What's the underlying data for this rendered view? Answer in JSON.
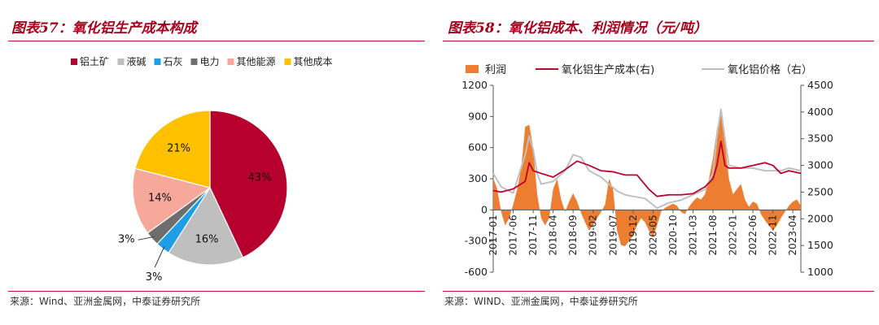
{
  "left": {
    "figure_title": "图表57：氧化铝生产成本构成",
    "source": "来源：Wind、亚洲金属网，中泰证券研究所"
  },
  "right": {
    "figure_title": "图表58：氧化铝成本、利润情况（元/吨）",
    "source": "来源：WIND、亚洲金属网，中泰证券研究所"
  },
  "chart_data": [
    {
      "type": "pie",
      "title": "",
      "legend_position": "top",
      "slices": [
        {
          "label": "铝土矿",
          "value": 43,
          "display": "43%",
          "color": "#b8002e"
        },
        {
          "label": "液碱",
          "value": 16,
          "display": "16%",
          "color": "#bfbfbf"
        },
        {
          "label": "石灰",
          "value": 3,
          "display": "3%",
          "color": "#1e9ee6"
        },
        {
          "label": "电力",
          "value": 3,
          "display": "3%",
          "color": "#6e6e6e"
        },
        {
          "label": "其他能源",
          "value": 14,
          "display": "14%",
          "color": "#f6a89a"
        },
        {
          "label": "其他成本",
          "value": 21,
          "display": "21%",
          "color": "#ffc000"
        }
      ]
    },
    {
      "type": "area",
      "title": "",
      "legend_position": "top",
      "x_tick_labels": [
        "2017-01",
        "2017-06",
        "2017-11",
        "2018-04",
        "2018-09",
        "2019-02",
        "2019-07",
        "2019-12",
        "2020-05",
        "2020-10",
        "2021-03",
        "2021-08",
        "2022-01",
        "2022-06",
        "2022-11",
        "2023-04"
      ],
      "y_left": {
        "min": -600,
        "max": 1200,
        "ticks": [
          -600,
          -300,
          0,
          300,
          600,
          900,
          1200
        ]
      },
      "y_right": {
        "min": 1000,
        "max": 4500,
        "ticks": [
          1000,
          1500,
          2000,
          2500,
          3000,
          3500,
          4000,
          4500
        ]
      },
      "series": [
        {
          "name": "利润",
          "type": "area",
          "axis": "left",
          "color": "#ed7d31",
          "points": [
            [
              "2017-01",
              310
            ],
            [
              "2017-02",
              200
            ],
            [
              "2017-03",
              -20
            ],
            [
              "2017-04",
              -150
            ],
            [
              "2017-05",
              -80
            ],
            [
              "2017-06",
              50
            ],
            [
              "2017-07",
              200
            ],
            [
              "2017-08",
              400
            ],
            [
              "2017-09",
              800
            ],
            [
              "2017-10",
              820
            ],
            [
              "2017-11",
              600
            ],
            [
              "2017-12",
              150
            ],
            [
              "2018-01",
              -80
            ],
            [
              "2018-02",
              -150
            ],
            [
              "2018-03",
              -80
            ],
            [
              "2018-04",
              200
            ],
            [
              "2018-05",
              300
            ],
            [
              "2018-06",
              100
            ],
            [
              "2018-07",
              -20
            ],
            [
              "2018-08",
              80
            ],
            [
              "2018-09",
              160
            ],
            [
              "2018-10",
              80
            ],
            [
              "2018-11",
              -30
            ],
            [
              "2018-12",
              -120
            ],
            [
              "2019-01",
              -200
            ],
            [
              "2019-02",
              -150
            ],
            [
              "2019-03",
              -80
            ],
            [
              "2019-04",
              -20
            ],
            [
              "2019-05",
              50
            ],
            [
              "2019-06",
              300
            ],
            [
              "2019-07",
              200
            ],
            [
              "2019-08",
              -200
            ],
            [
              "2019-09",
              -340
            ],
            [
              "2019-10",
              -350
            ],
            [
              "2019-11",
              -300
            ],
            [
              "2019-12",
              -250
            ],
            [
              "2020-01",
              -150
            ],
            [
              "2020-02",
              -80
            ],
            [
              "2020-03",
              -120
            ],
            [
              "2020-04",
              -200
            ],
            [
              "2020-05",
              -270
            ],
            [
              "2020-06",
              -150
            ],
            [
              "2020-07",
              -20
            ],
            [
              "2020-08",
              20
            ],
            [
              "2020-09",
              40
            ],
            [
              "2020-10",
              60
            ],
            [
              "2020-11",
              40
            ],
            [
              "2020-12",
              -20
            ],
            [
              "2021-01",
              -40
            ],
            [
              "2021-02",
              30
            ],
            [
              "2021-03",
              80
            ],
            [
              "2021-04",
              120
            ],
            [
              "2021-05",
              100
            ],
            [
              "2021-06",
              150
            ],
            [
              "2021-07",
              300
            ],
            [
              "2021-08",
              500
            ],
            [
              "2021-09",
              780
            ],
            [
              "2021-10",
              950
            ],
            [
              "2021-11",
              650
            ],
            [
              "2021-12",
              300
            ],
            [
              "2022-01",
              150
            ],
            [
              "2022-02",
              200
            ],
            [
              "2022-03",
              250
            ],
            [
              "2022-04",
              100
            ],
            [
              "2022-05",
              30
            ],
            [
              "2022-06",
              80
            ],
            [
              "2022-07",
              60
            ],
            [
              "2022-08",
              -40
            ],
            [
              "2022-09",
              -100
            ],
            [
              "2022-10",
              -150
            ],
            [
              "2022-11",
              -200
            ],
            [
              "2022-12",
              -150
            ],
            [
              "2023-01",
              -80
            ],
            [
              "2023-02",
              -20
            ],
            [
              "2023-03",
              40
            ],
            [
              "2023-04",
              80
            ],
            [
              "2023-05",
              100
            ],
            [
              "2023-06",
              40
            ]
          ]
        },
        {
          "name": "氧化铝生产成本(右)",
          "type": "line",
          "axis": "right",
          "color": "#c0002c",
          "points": [
            [
              "2017-01",
              2530
            ],
            [
              "2017-03",
              2500
            ],
            [
              "2017-06",
              2560
            ],
            [
              "2017-09",
              2700
            ],
            [
              "2017-10",
              3050
            ],
            [
              "2017-11",
              2900
            ],
            [
              "2018-01",
              2850
            ],
            [
              "2018-04",
              2780
            ],
            [
              "2018-07",
              2920
            ],
            [
              "2018-10",
              3080
            ],
            [
              "2019-01",
              3000
            ],
            [
              "2019-04",
              2900
            ],
            [
              "2019-07",
              2880
            ],
            [
              "2019-10",
              2820
            ],
            [
              "2020-01",
              2820
            ],
            [
              "2020-04",
              2550
            ],
            [
              "2020-06",
              2420
            ],
            [
              "2020-09",
              2450
            ],
            [
              "2020-12",
              2450
            ],
            [
              "2021-03",
              2470
            ],
            [
              "2021-06",
              2600
            ],
            [
              "2021-08",
              2750
            ],
            [
              "2021-09",
              3000
            ],
            [
              "2021-10",
              3450
            ],
            [
              "2021-11",
              3000
            ],
            [
              "2021-12",
              2950
            ],
            [
              "2022-03",
              2950
            ],
            [
              "2022-06",
              3000
            ],
            [
              "2022-09",
              3050
            ],
            [
              "2022-11",
              3000
            ],
            [
              "2023-01",
              2850
            ],
            [
              "2023-03",
              2900
            ],
            [
              "2023-06",
              2850
            ]
          ]
        },
        {
          "name": "氧化铝价格（右）",
          "type": "line",
          "axis": "right",
          "color": "#c0c0c0",
          "points": [
            [
              "2017-01",
              2850
            ],
            [
              "2017-03",
              2600
            ],
            [
              "2017-06",
              2480
            ],
            [
              "2017-09",
              3200
            ],
            [
              "2017-10",
              3550
            ],
            [
              "2017-11",
              3300
            ],
            [
              "2017-12",
              2850
            ],
            [
              "2018-01",
              2650
            ],
            [
              "2018-04",
              2700
            ],
            [
              "2018-07",
              2900
            ],
            [
              "2018-09",
              3200
            ],
            [
              "2018-11",
              3150
            ],
            [
              "2019-01",
              2900
            ],
            [
              "2019-04",
              2780
            ],
            [
              "2019-06",
              2650
            ],
            [
              "2019-08",
              2520
            ],
            [
              "2019-10",
              2450
            ],
            [
              "2019-12",
              2420
            ],
            [
              "2020-03",
              2380
            ],
            [
              "2020-06",
              2200
            ],
            [
              "2020-09",
              2300
            ],
            [
              "2020-12",
              2350
            ],
            [
              "2021-03",
              2450
            ],
            [
              "2021-06",
              2550
            ],
            [
              "2021-08",
              2850
            ],
            [
              "2021-09",
              3550
            ],
            [
              "2021-10",
              4050
            ],
            [
              "2021-11",
              3500
            ],
            [
              "2021-12",
              3000
            ],
            [
              "2022-03",
              2950
            ],
            [
              "2022-06",
              2950
            ],
            [
              "2022-09",
              2900
            ],
            [
              "2022-11",
              2900
            ],
            [
              "2023-01",
              2900
            ],
            [
              "2023-03",
              2950
            ],
            [
              "2023-06",
              2900
            ]
          ]
        }
      ]
    }
  ]
}
